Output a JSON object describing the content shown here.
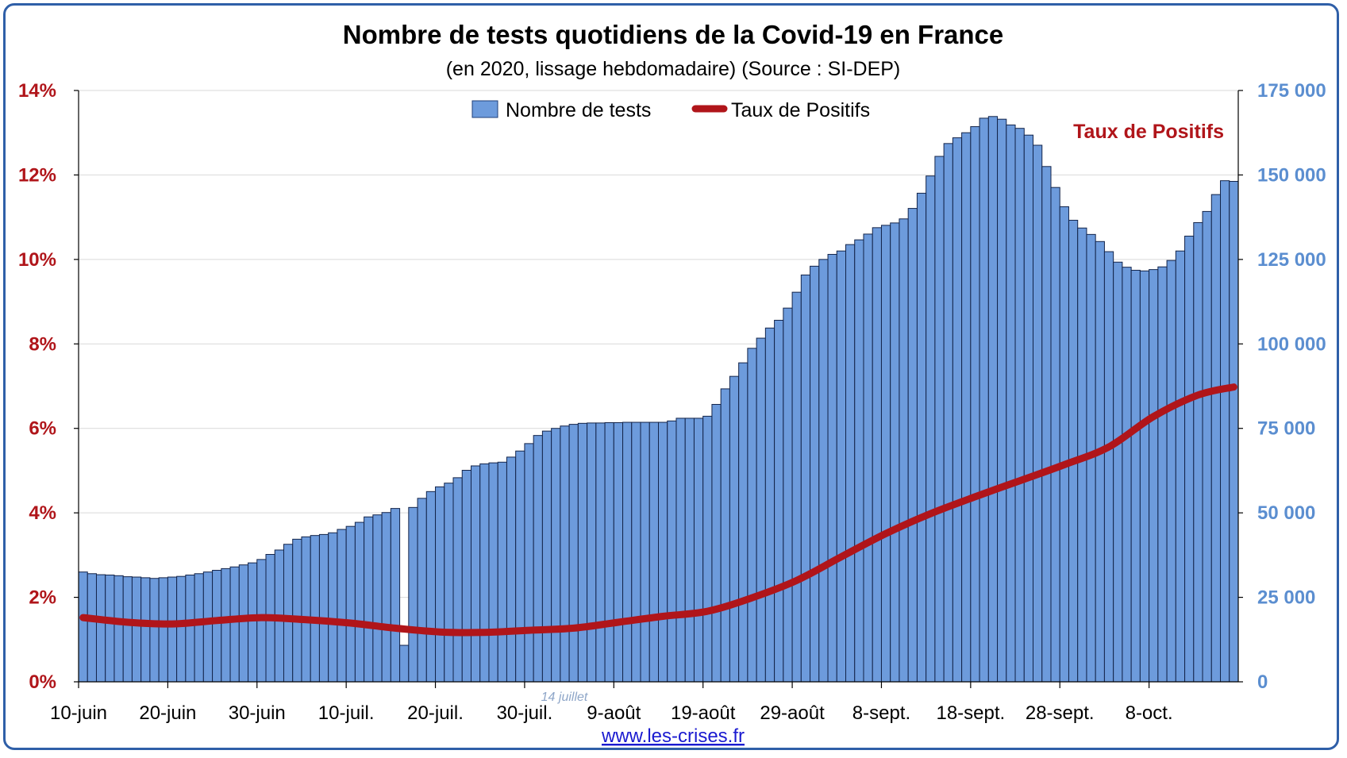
{
  "chart_data": {
    "type": "bar",
    "title": "Nombre de tests quotidiens de la Covid-19 en France",
    "subtitle": "(en 2020, lissage hebdomadaire) (Source : SI-DEP)",
    "x_tick_labels": [
      "10-juin",
      "20-juin",
      "30-juin",
      "10-juil.",
      "20-juil.",
      "30-juil.",
      "9-août",
      "19-août",
      "29-août",
      "8-sept.",
      "18-sept.",
      "28-sept.",
      "8-oct."
    ],
    "y_left": {
      "ticks": [
        "0%",
        "2%",
        "4%",
        "6%",
        "8%",
        "10%",
        "12%",
        "14%"
      ],
      "range": [
        0,
        14
      ],
      "unit": "%"
    },
    "y_right": {
      "ticks": [
        "0",
        "25 000",
        "50 000",
        "75 000",
        "100 000",
        "125 000",
        "150 000",
        "175 000"
      ],
      "range": [
        0,
        175000
      ]
    },
    "grid": true,
    "legend_position": "top-center",
    "series": [
      {
        "name": "Nombre de tests",
        "type": "bar",
        "axis": "right",
        "color": "#6d9bdc",
        "values": [
          32500,
          32000,
          31700,
          31600,
          31400,
          31100,
          31000,
          30800,
          30600,
          30800,
          31000,
          31200,
          31600,
          32000,
          32500,
          33000,
          33500,
          34000,
          34600,
          35200,
          36200,
          37700,
          39000,
          40700,
          42200,
          42900,
          43300,
          43600,
          44100,
          45100,
          46000,
          47200,
          48800,
          49400,
          50100,
          51300,
          10800,
          51600,
          54300,
          56300,
          57700,
          58800,
          60400,
          62600,
          63900,
          64500,
          64800,
          65000,
          66500,
          68300,
          70500,
          72900,
          74200,
          75000,
          75700,
          76200,
          76500,
          76600,
          76600,
          76700,
          76700,
          76800,
          76800,
          76800,
          76800,
          76800,
          77200,
          78000,
          78000,
          78000,
          78600,
          82100,
          86700,
          90400,
          94400,
          98700,
          101700,
          104700,
          107000,
          110600,
          115300,
          120400,
          123000,
          125000,
          126500,
          127500,
          129400,
          130800,
          132500,
          134400,
          135100,
          135800,
          137000,
          140100,
          144600,
          149700,
          155500,
          159300,
          161000,
          162500,
          164300,
          166800,
          167300,
          166500,
          164800,
          163800,
          161800,
          158800,
          152500,
          146300,
          140600,
          136600,
          134300,
          132400,
          130300,
          127300,
          124200,
          122700,
          121800,
          121600,
          122000,
          122800,
          124700,
          127500,
          131900,
          135900,
          139200,
          144200,
          148300,
          148100
        ],
        "annotations": [
          {
            "text": "14 juillet"
          }
        ]
      },
      {
        "name": "Taux de Positifs",
        "type": "line",
        "axis": "left",
        "color": "#b0151a",
        "x_index": [
          0,
          5,
          10,
          15,
          20,
          25,
          30,
          35,
          40,
          45,
          50,
          55,
          60,
          65,
          70,
          75,
          80,
          85,
          90,
          95,
          100,
          105,
          110,
          115,
          120,
          125,
          129
        ],
        "values": [
          1.52,
          1.41,
          1.37,
          1.45,
          1.52,
          1.47,
          1.39,
          1.27,
          1.18,
          1.17,
          1.22,
          1.27,
          1.41,
          1.55,
          1.67,
          1.99,
          2.4,
          2.96,
          3.51,
          3.98,
          4.38,
          4.76,
          5.14,
          5.56,
          6.28,
          6.79,
          6.98
        ],
        "label": "Taux de Positifs"
      }
    ]
  },
  "footer": {
    "url": "www.les-crises.fr"
  }
}
